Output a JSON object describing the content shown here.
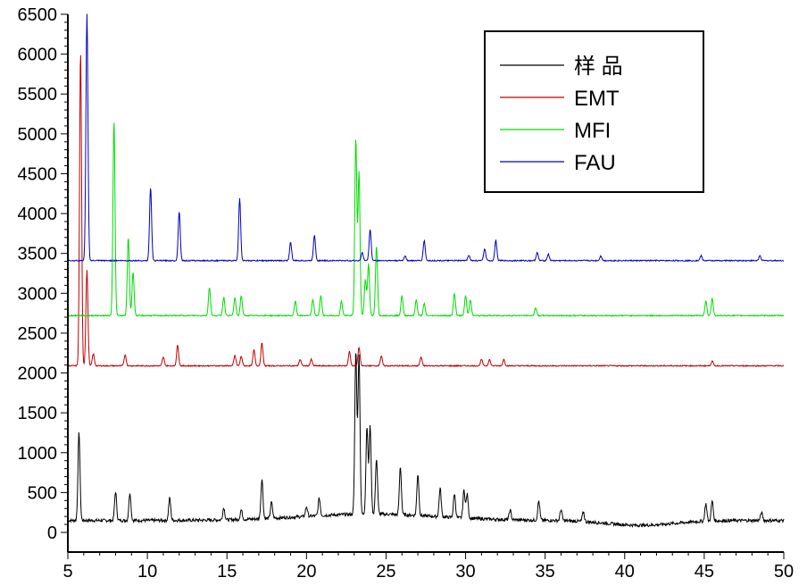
{
  "chart_data": {
    "type": "line",
    "title": "",
    "xlabel": "",
    "ylabel": "",
    "xlim": [
      5,
      50
    ],
    "ylim": [
      -100,
      6500
    ],
    "x_ticks": [
      5,
      10,
      15,
      20,
      25,
      30,
      35,
      40,
      45,
      50
    ],
    "y_ticks": [
      0,
      500,
      1000,
      1500,
      2000,
      2500,
      3000,
      3500,
      4000,
      4500,
      5000,
      5500,
      6000,
      6500
    ],
    "grid": false,
    "legend_position": "top-right",
    "series": [
      {
        "name": "样 品",
        "color": "#000000",
        "baseline": 150,
        "peaks": [
          [
            5.7,
            1100
          ],
          [
            8.0,
            360
          ],
          [
            8.9,
            350
          ],
          [
            11.4,
            280
          ],
          [
            14.8,
            150
          ],
          [
            15.9,
            120
          ],
          [
            17.2,
            500
          ],
          [
            17.8,
            200
          ],
          [
            20.0,
            120
          ],
          [
            20.8,
            220
          ],
          [
            23.1,
            2050
          ],
          [
            23.3,
            2000
          ],
          [
            23.8,
            1100
          ],
          [
            24.0,
            1100
          ],
          [
            24.4,
            700
          ],
          [
            25.9,
            600
          ],
          [
            27.0,
            520
          ],
          [
            28.4,
            360
          ],
          [
            29.3,
            300
          ],
          [
            29.9,
            350
          ],
          [
            30.1,
            300
          ],
          [
            32.8,
            120
          ],
          [
            34.6,
            240
          ],
          [
            36.0,
            140
          ],
          [
            37.4,
            120
          ],
          [
            45.1,
            220
          ],
          [
            45.5,
            250
          ],
          [
            48.6,
            100
          ]
        ]
      },
      {
        "name": "EMT",
        "color": "#c00000",
        "baseline": 2090,
        "peaks": [
          [
            5.8,
            3950
          ],
          [
            6.2,
            1200
          ],
          [
            6.6,
            150
          ],
          [
            8.6,
            140
          ],
          [
            11.0,
            110
          ],
          [
            11.9,
            260
          ],
          [
            15.5,
            130
          ],
          [
            15.9,
            120
          ],
          [
            16.7,
            200
          ],
          [
            17.2,
            290
          ],
          [
            19.6,
            80
          ],
          [
            20.3,
            80
          ],
          [
            22.7,
            180
          ],
          [
            23.3,
            230
          ],
          [
            24.7,
            120
          ],
          [
            27.2,
            110
          ],
          [
            31.0,
            80
          ],
          [
            31.5,
            80
          ],
          [
            32.4,
            80
          ],
          [
            45.5,
            60
          ]
        ]
      },
      {
        "name": "MFI",
        "color": "#00dd00",
        "baseline": 2720,
        "peaks": [
          [
            7.9,
            2450
          ],
          [
            8.8,
            980
          ],
          [
            9.1,
            550
          ],
          [
            13.9,
            350
          ],
          [
            14.8,
            230
          ],
          [
            15.5,
            220
          ],
          [
            15.9,
            250
          ],
          [
            19.3,
            180
          ],
          [
            20.4,
            200
          ],
          [
            20.9,
            250
          ],
          [
            22.2,
            180
          ],
          [
            23.1,
            2220
          ],
          [
            23.3,
            1800
          ],
          [
            23.7,
            450
          ],
          [
            23.9,
            650
          ],
          [
            24.4,
            870
          ],
          [
            26.0,
            250
          ],
          [
            26.9,
            200
          ],
          [
            27.4,
            150
          ],
          [
            29.3,
            280
          ],
          [
            30.0,
            250
          ],
          [
            30.3,
            200
          ],
          [
            34.4,
            100
          ],
          [
            45.1,
            180
          ],
          [
            45.5,
            220
          ]
        ]
      },
      {
        "name": "FAU",
        "color": "#0000c0",
        "baseline": 3410,
        "peaks": [
          [
            6.2,
            3090
          ],
          [
            10.2,
            920
          ],
          [
            12.0,
            620
          ],
          [
            15.8,
            780
          ],
          [
            19.0,
            230
          ],
          [
            20.5,
            320
          ],
          [
            23.5,
            100
          ],
          [
            24.0,
            390
          ],
          [
            26.2,
            60
          ],
          [
            27.4,
            250
          ],
          [
            30.2,
            70
          ],
          [
            31.2,
            150
          ],
          [
            31.9,
            250
          ],
          [
            34.5,
            100
          ],
          [
            35.2,
            80
          ],
          [
            38.5,
            60
          ],
          [
            44.8,
            60
          ],
          [
            48.5,
            60
          ]
        ]
      }
    ]
  }
}
